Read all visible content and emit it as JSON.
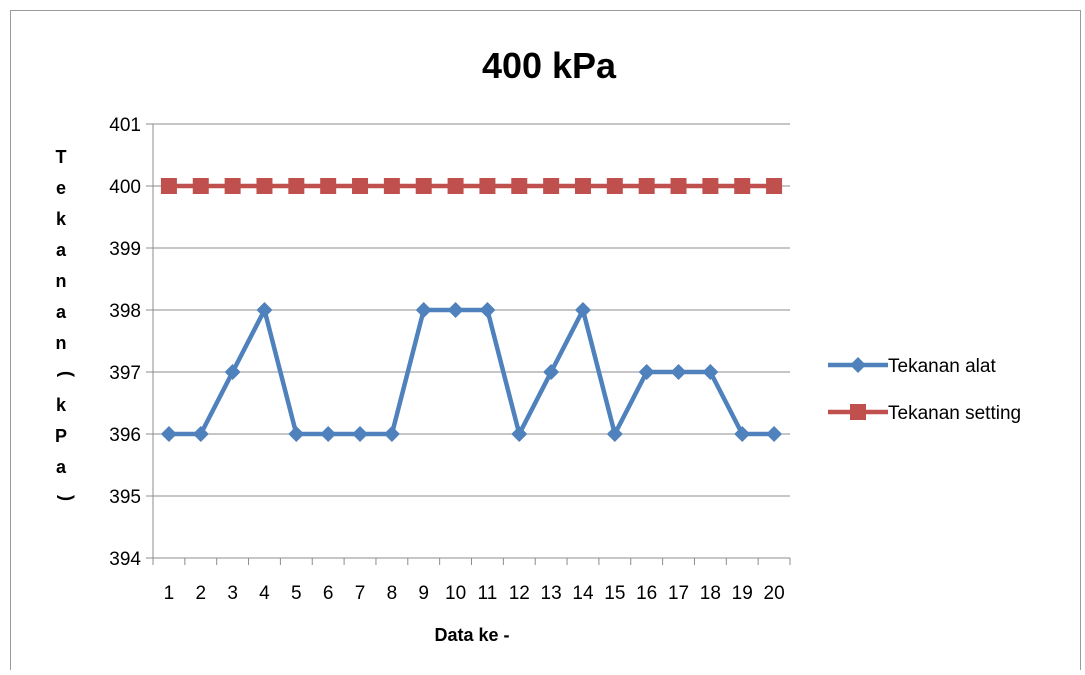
{
  "chart_data": {
    "type": "line",
    "title": "400 kPa",
    "xlabel": "Data ke -",
    "ylabel": "Tekanan (kPa)",
    "ylim": [
      394,
      401
    ],
    "yticks": [
      394,
      395,
      396,
      397,
      398,
      399,
      400,
      401
    ],
    "categories": [
      "1",
      "2",
      "3",
      "4",
      "5",
      "6",
      "7",
      "8",
      "9",
      "10",
      "11",
      "12",
      "13",
      "14",
      "15",
      "16",
      "17",
      "18",
      "19",
      "20"
    ],
    "grid": "horizontal",
    "legend_position": "right",
    "series": [
      {
        "name": "Tekanan alat",
        "color": "#4f81bd",
        "marker": "diamond",
        "values": [
          396,
          396,
          397,
          398,
          396,
          396,
          396,
          396,
          398,
          398,
          398,
          396,
          397,
          398,
          396,
          397,
          397,
          397,
          396,
          396
        ]
      },
      {
        "name": "Tekanan setting",
        "color": "#c0504d",
        "marker": "square",
        "values": [
          400,
          400,
          400,
          400,
          400,
          400,
          400,
          400,
          400,
          400,
          400,
          400,
          400,
          400,
          400,
          400,
          400,
          400,
          400,
          400
        ]
      }
    ]
  }
}
